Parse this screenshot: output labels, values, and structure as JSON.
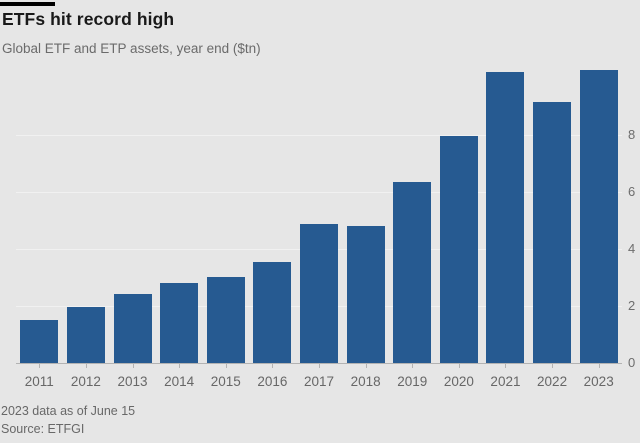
{
  "header": {
    "title": "ETFs hit record high",
    "subtitle": "Global ETF and ETP assets, year end ($tn)"
  },
  "footer": {
    "footnote": "2023 data as of June 15",
    "source": "Source: ETFGI"
  },
  "colors": {
    "background": "#e6e6e6",
    "bar": "#265a91",
    "gridline": "#f1f1f1",
    "axis": "#b3b3b3",
    "title_text": "#191919",
    "muted_text": "#6b6b6b",
    "top_rule": "#000000"
  },
  "chart_data": {
    "type": "bar",
    "title": "ETFs hit record high",
    "subtitle": "Global ETF and ETP assets, year end ($tn)",
    "categories": [
      "2011",
      "2012",
      "2013",
      "2014",
      "2015",
      "2016",
      "2017",
      "2018",
      "2019",
      "2020",
      "2021",
      "2022",
      "2023"
    ],
    "values": [
      1.5,
      1.95,
      2.4,
      2.8,
      3.0,
      3.55,
      4.85,
      4.8,
      6.35,
      7.95,
      10.2,
      9.15,
      10.25
    ],
    "ylabel": "",
    "xlabel": "",
    "yticks": [
      0,
      2,
      4,
      6,
      8
    ],
    "ylim": [
      0,
      10.4
    ],
    "legend": "none",
    "grid": "horizontal",
    "y_axis_side": "right",
    "footnote": "2023 data as of June 15",
    "source": "Source: ETFGI"
  }
}
